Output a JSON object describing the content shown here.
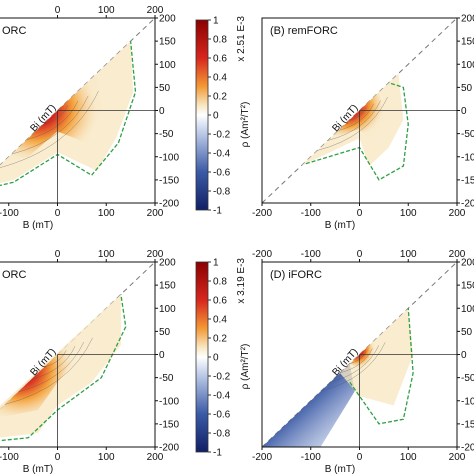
{
  "chart_data": [
    {
      "type": "heatmap",
      "panel_label": "",
      "partial_label": "ORC",
      "xlabel": "B (mT)",
      "diag_label": "Bi (mT)",
      "xlim": [
        -200,
        200
      ],
      "ylim": [
        -200,
        200
      ],
      "x_ticks": [
        "-100",
        "0",
        "100",
        "200"
      ],
      "top_ticks": [
        "0",
        "100",
        "200"
      ],
      "y_ticks": [
        "200",
        "150",
        "100",
        "50",
        "0",
        "-50",
        "-100",
        "-150",
        "-200"
      ],
      "extent": 175,
      "has_green_contour": true
    },
    {
      "type": "heatmap",
      "panel_label": "(B) remFORC",
      "xlabel": "B (mT)",
      "diag_label": "Bi (mT)",
      "xlim": [
        -200,
        200
      ],
      "ylim": [
        -200,
        200
      ],
      "x_ticks": [
        "-200",
        "-100",
        "0",
        "100",
        "200"
      ],
      "y_ticks": [
        "200",
        "150",
        "100",
        "50",
        "0",
        "-50",
        "-100",
        "-150",
        "-200"
      ],
      "extent": 120,
      "has_green_contour": true
    },
    {
      "type": "heatmap",
      "panel_label": "",
      "partial_label": "ORC",
      "xlabel": "B (mT)",
      "diag_label": "Bi (mT)",
      "xlim": [
        -200,
        200
      ],
      "ylim": [
        -200,
        200
      ],
      "x_ticks": [
        "-100",
        "0",
        "100",
        "200"
      ],
      "top_ticks": [
        "0",
        "100",
        "200"
      ],
      "y_ticks": [
        "200",
        "150",
        "100",
        "50",
        "0",
        "-50",
        "-100",
        "-150",
        "-200"
      ],
      "extent": 150,
      "has_green_contour": true
    },
    {
      "type": "heatmap",
      "panel_label": "(D) iFORC",
      "xlabel": "B (mT)",
      "diag_label": "Bi (mT)",
      "xlim": [
        -200,
        200
      ],
      "ylim": [
        -200,
        200
      ],
      "x_ticks": [
        "-200",
        "-100",
        "0",
        "100",
        "200"
      ],
      "top_ticks": [
        "-200",
        "-100",
        "0",
        "100",
        "200"
      ],
      "y_ticks": [
        "200",
        "150",
        "100",
        "50",
        "0",
        "-50",
        "-100",
        "-150",
        "-200"
      ],
      "extent": 110,
      "has_green_contour": true
    }
  ],
  "colorbars": [
    {
      "multiplier": "x 2.51 E-3",
      "label": "ρ (Am²/T²)",
      "ticks": [
        "1",
        "0.8",
        "0.6",
        "0.4",
        "0.2",
        "0",
        "-0.2",
        "-0.4",
        "-0.6",
        "-0.8",
        "-1"
      ]
    },
    {
      "multiplier": "x 3.19 E-3",
      "label": "ρ (Am²/T²)",
      "ticks": [
        "1",
        "0.8",
        "0.6",
        "0.4",
        "0.2",
        "0",
        "-0.2",
        "-0.4",
        "-0.6",
        "-0.8",
        "-1"
      ]
    }
  ],
  "colors": {
    "dark_red": "#8b0000",
    "red": "#d7261e",
    "orange": "#f6a13a",
    "pale": "#f8e7c3",
    "white": "#ffffff",
    "light_blue": "#b9c8e6",
    "blue": "#3b5aa6",
    "dark_blue": "#101f66",
    "green_contour": "#2ea043",
    "contour": "#555555",
    "axis": "#111111"
  }
}
